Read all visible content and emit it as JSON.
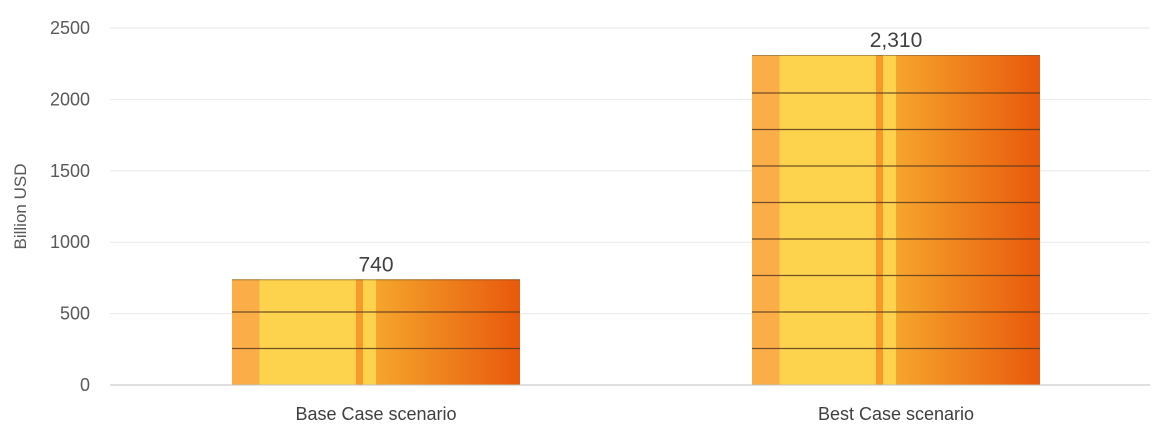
{
  "chart_data": {
    "type": "bar",
    "categories": [
      "Base Case scenario",
      "Best Case scenario"
    ],
    "values": [
      740,
      2310
    ],
    "data_labels": [
      "740",
      "2,310"
    ],
    "title": "",
    "xlabel": "",
    "ylabel": "Billion USD",
    "ylim": [
      0,
      2500
    ],
    "yticks": [
      0,
      500,
      1000,
      1500,
      2000,
      2500
    ],
    "ytick_labels": [
      "0",
      "500",
      "1000",
      "1500",
      "2000",
      "2500"
    ],
    "grid": true,
    "legend": "none",
    "colors": {
      "bar_left": "#FBAE48",
      "bar_mid": "#FDD34D",
      "bar_stripe": "#F79A2A",
      "bar_right_start": "#F5A52C",
      "bar_right_end": "#E8590C",
      "segment_line": "#5A3A1E",
      "gridline": "#E8E8E8",
      "baseline": "#BFBFBF"
    }
  }
}
